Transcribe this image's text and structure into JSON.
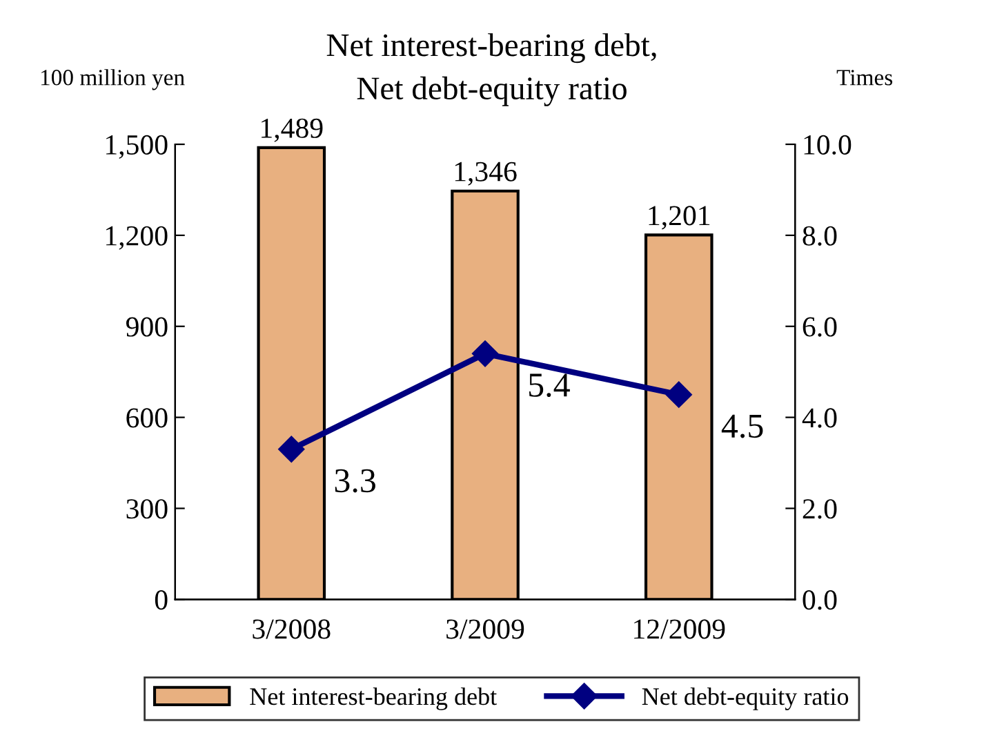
{
  "chart_data": {
    "type": "bar",
    "title": "Net interest-bearing debt,\nNet debt-equity ratio",
    "ylabel": "100 million yen",
    "y2label": "Times",
    "categories": [
      "3/2008",
      "3/2009",
      "12/2009"
    ],
    "series": [
      {
        "name": "Net interest-bearing debt",
        "color": "#e8b080",
        "values": [
          1489,
          1346,
          1201
        ],
        "value_labels": [
          "1,489",
          "1,346",
          "1,201"
        ]
      },
      {
        "name": "Net debt-equity ratio",
        "type": "line",
        "axis": "y2",
        "color": "#000080",
        "marker": "diamond",
        "values": [
          3.3,
          5.4,
          4.5
        ],
        "value_labels": [
          "3.3",
          "5.4",
          "4.5"
        ]
      }
    ],
    "ylim": [
      0,
      1500
    ],
    "yticks": [
      0,
      300,
      600,
      900,
      {
        "value": 1200,
        "label": "1,200"
      },
      {
        "value": 1500,
        "label": "1,500"
      }
    ],
    "y2lim": [
      0,
      10
    ],
    "y2ticks": [
      {
        "value": 0,
        "label": "0.0"
      },
      {
        "value": 2,
        "label": "2.0"
      },
      {
        "value": 4,
        "label": "4.0"
      },
      {
        "value": 6,
        "label": "6.0"
      },
      {
        "value": 8,
        "label": "8.0"
      },
      {
        "value": 10,
        "label": "10.0"
      }
    ],
    "grid": false,
    "legend": "bottom"
  }
}
